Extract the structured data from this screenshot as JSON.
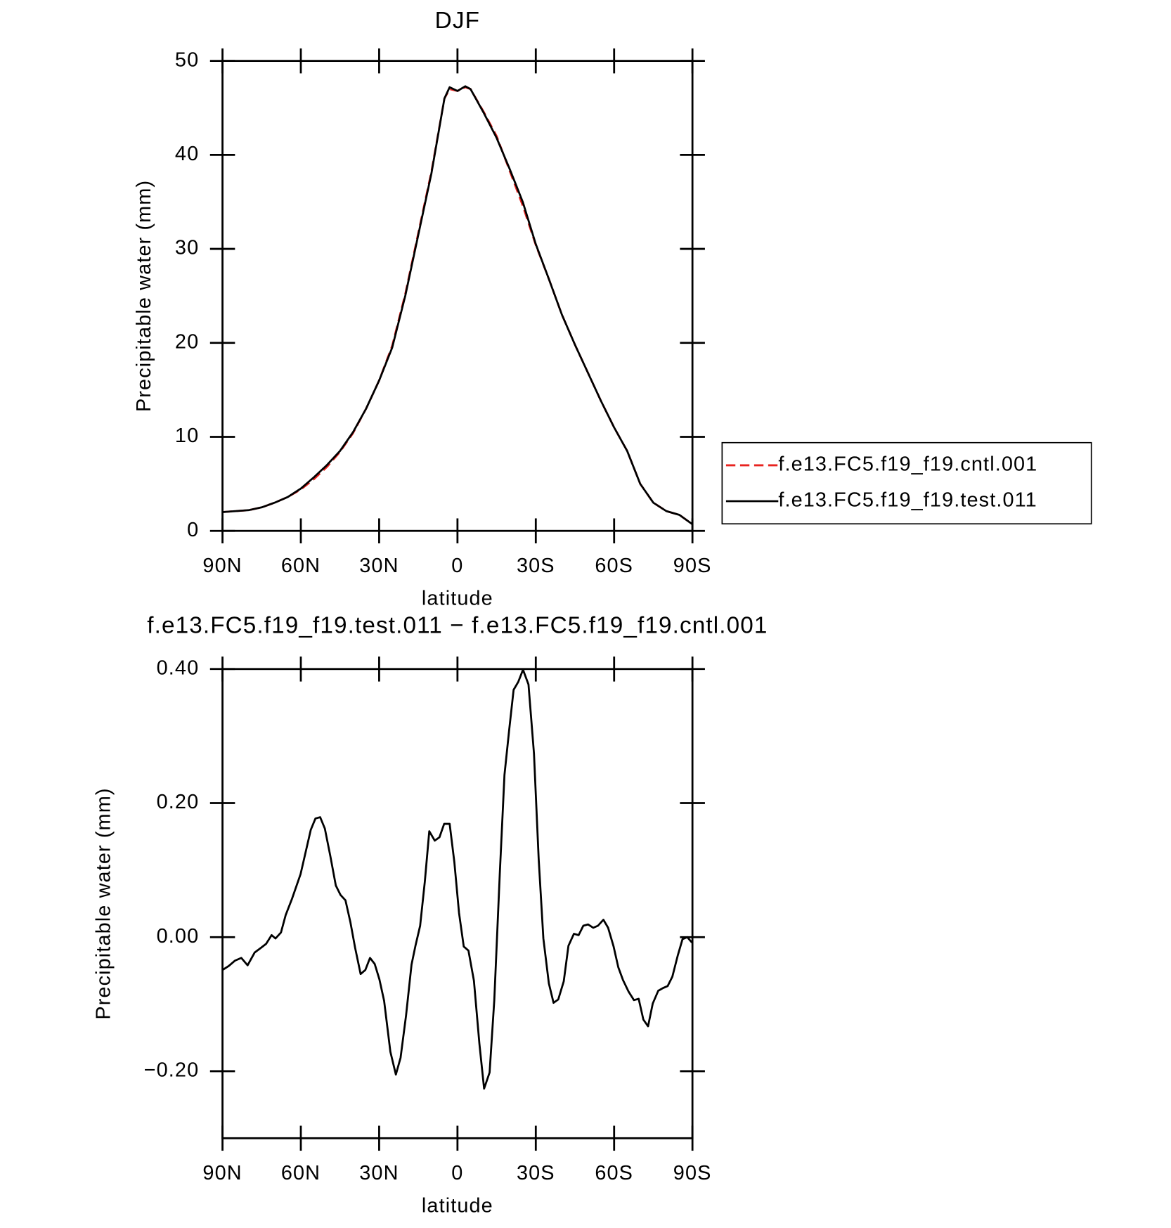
{
  "chart_data": [
    {
      "type": "line",
      "title": "DJF",
      "y_label": "Precipitable water (mm)",
      "x_label": "latitude",
      "x": [
        90,
        85,
        80,
        75,
        70,
        65,
        60,
        55,
        50,
        45,
        40,
        35,
        30,
        25,
        20,
        15,
        10,
        5,
        3,
        0,
        -3,
        -5,
        -10,
        -15,
        -20,
        -25,
        -30,
        -35,
        -40,
        -45,
        -50,
        -55,
        -60,
        -65,
        -70,
        -75,
        -80,
        -85,
        -90
      ],
      "series": [
        {
          "name": "f.e13.FC5.f19_f19.cntl.001",
          "color": "#e8231f",
          "dashed": true,
          "values": [
            2.0,
            2.1,
            2.2,
            2.5,
            3.0,
            3.6,
            4.4,
            5.5,
            6.8,
            8.4,
            10.4,
            13.0,
            16.0,
            19.7,
            25.2,
            31.7,
            38.2,
            46.0,
            47.0,
            46.8,
            47.2,
            47.0,
            44.6,
            42.0,
            38.3,
            34.6,
            30.4,
            26.8,
            23.0,
            19.8,
            16.8,
            13.8,
            11.0,
            8.5,
            5.0,
            3.0,
            2.1,
            1.7,
            0.7
          ]
        },
        {
          "name": "f.e13.FC5.f19_f19.test.011",
          "color": "#000000",
          "dashed": false,
          "values": [
            2.0,
            2.1,
            2.2,
            2.5,
            3.0,
            3.6,
            4.5,
            5.7,
            7.0,
            8.5,
            10.5,
            13.0,
            16.0,
            19.5,
            25.0,
            31.5,
            38.0,
            46.0,
            47.2,
            46.8,
            47.3,
            47.0,
            44.5,
            41.8,
            38.5,
            35.0,
            30.5,
            26.8,
            23.0,
            19.8,
            16.8,
            13.8,
            11.0,
            8.5,
            5.0,
            3.0,
            2.1,
            1.7,
            0.7
          ]
        }
      ],
      "xlim": [
        90,
        -90
      ],
      "xticks": [
        {
          "value": 90,
          "label": "90N"
        },
        {
          "value": 60,
          "label": "60N"
        },
        {
          "value": 30,
          "label": "30N"
        },
        0,
        {
          "value": -30,
          "label": "30S"
        },
        {
          "value": -60,
          "label": "60S"
        },
        {
          "value": -90,
          "label": "90S"
        }
      ],
      "ylim": [
        0,
        50
      ],
      "yticks": [
        0,
        10,
        20,
        30,
        40,
        50
      ],
      "legend": "right"
    },
    {
      "type": "line",
      "title": "f.e13.FC5.f19_f19.test.011 − f.e13.FC5.f19_f19.cntl.001",
      "y_label": "Precipitable water (mm)",
      "x_label": "latitude",
      "x": [
        90,
        87.6,
        85.2,
        82.8,
        80.4,
        77.7,
        75.3,
        73.3,
        71.2,
        69.7,
        67.6,
        65.8,
        63.4,
        60.1,
        56.2,
        54.4,
        52.6,
        50.8,
        48.7,
        46.6,
        44.8,
        42.9,
        41,
        39.2,
        37.1,
        35.3,
        33.5,
        31.7,
        29.9,
        28.1,
        25.7,
        23.6,
        21.8,
        19.7,
        17.6,
        16.1,
        14.3,
        12.5,
        10.8,
        8.7,
        6.9,
        5.1,
        3,
        1.2,
        -0.6,
        -2.4,
        -4.2,
        -6.3,
        -8.4,
        -10.2,
        -12.3,
        -14.1,
        -16.2,
        -18,
        -19.8,
        -21.5,
        -23.3,
        -25.1,
        -27.2,
        -29.3,
        -31.1,
        -32.9,
        -35,
        -36.8,
        -38.6,
        -40.7,
        -42.5,
        -44.6,
        -46.4,
        -48.2,
        -50,
        -52,
        -53.8,
        -55.9,
        -57.7,
        -59.8,
        -61.6,
        -63.4,
        -65.5,
        -67.6,
        -69.4,
        -71.2,
        -73,
        -74.8,
        -76.9,
        -78.7,
        -80.5,
        -82.3,
        -84.4,
        -86.2,
        -88,
        -89.8
      ],
      "series": [
        {
          "color": "#000000",
          "dashed": false,
          "values": [
            -0.049,
            -0.043,
            -0.035,
            -0.031,
            -0.042,
            -0.023,
            -0.016,
            -0.01,
            0.003,
            -0.002,
            0.007,
            0.033,
            0.057,
            0.094,
            0.16,
            0.177,
            0.179,
            0.162,
            0.121,
            0.077,
            0.063,
            0.055,
            0.022,
            -0.016,
            -0.055,
            -0.049,
            -0.031,
            -0.04,
            -0.063,
            -0.095,
            -0.171,
            -0.205,
            -0.18,
            -0.117,
            -0.041,
            -0.013,
            0.017,
            0.083,
            0.158,
            0.144,
            0.149,
            0.169,
            0.169,
            0.112,
            0.036,
            -0.014,
            -0.02,
            -0.065,
            -0.159,
            -0.226,
            -0.202,
            -0.094,
            0.094,
            0.242,
            0.309,
            0.369,
            0.381,
            0.399,
            0.377,
            0.274,
            0.117,
            -0.002,
            -0.069,
            -0.098,
            -0.093,
            -0.066,
            -0.013,
            0.005,
            0.003,
            0.017,
            0.019,
            0.014,
            0.017,
            0.026,
            0.014,
            -0.014,
            -0.045,
            -0.064,
            -0.081,
            -0.094,
            -0.092,
            -0.123,
            -0.133,
            -0.099,
            -0.08,
            -0.076,
            -0.073,
            -0.059,
            -0.027,
            -0.003,
            0.0,
            -0.008
          ]
        }
      ],
      "xlim": [
        90,
        -90
      ],
      "xticks": [
        {
          "value": 90,
          "label": "90N"
        },
        {
          "value": 60,
          "label": "60N"
        },
        {
          "value": 30,
          "label": "30N"
        },
        0,
        {
          "value": -30,
          "label": "30S"
        },
        {
          "value": -60,
          "label": "60S"
        },
        {
          "value": -90,
          "label": "90S"
        }
      ],
      "ylim": [
        -0.3,
        0.4
      ],
      "yticks": [
        {
          "value": 0.4,
          "label": "0.40"
        },
        {
          "value": 0.2,
          "label": "0.20"
        },
        {
          "value": 0,
          "label": "0.00"
        },
        {
          "value": -0.2,
          "label": "−0.20"
        }
      ]
    }
  ]
}
